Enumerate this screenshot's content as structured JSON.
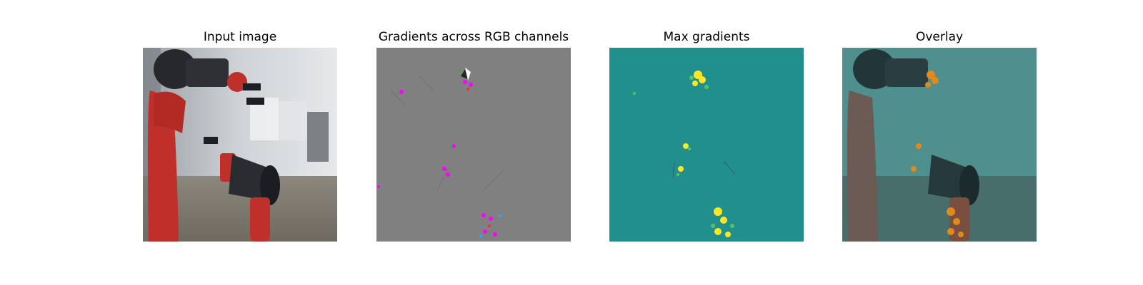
{
  "panels": [
    {
      "title": "Input image"
    },
    {
      "title": "Gradients across RGB channels"
    },
    {
      "title": "Max gradients"
    },
    {
      "title": "Overlay"
    }
  ],
  "colors": {
    "gradient_gray": "#808080",
    "max_grad_bg": "#21908d",
    "max_grad_hot": "#fde725",
    "gradient_magenta": "#ff00ff",
    "overlay_orange": "#e08a1a",
    "robot_red": "#c0302a"
  }
}
